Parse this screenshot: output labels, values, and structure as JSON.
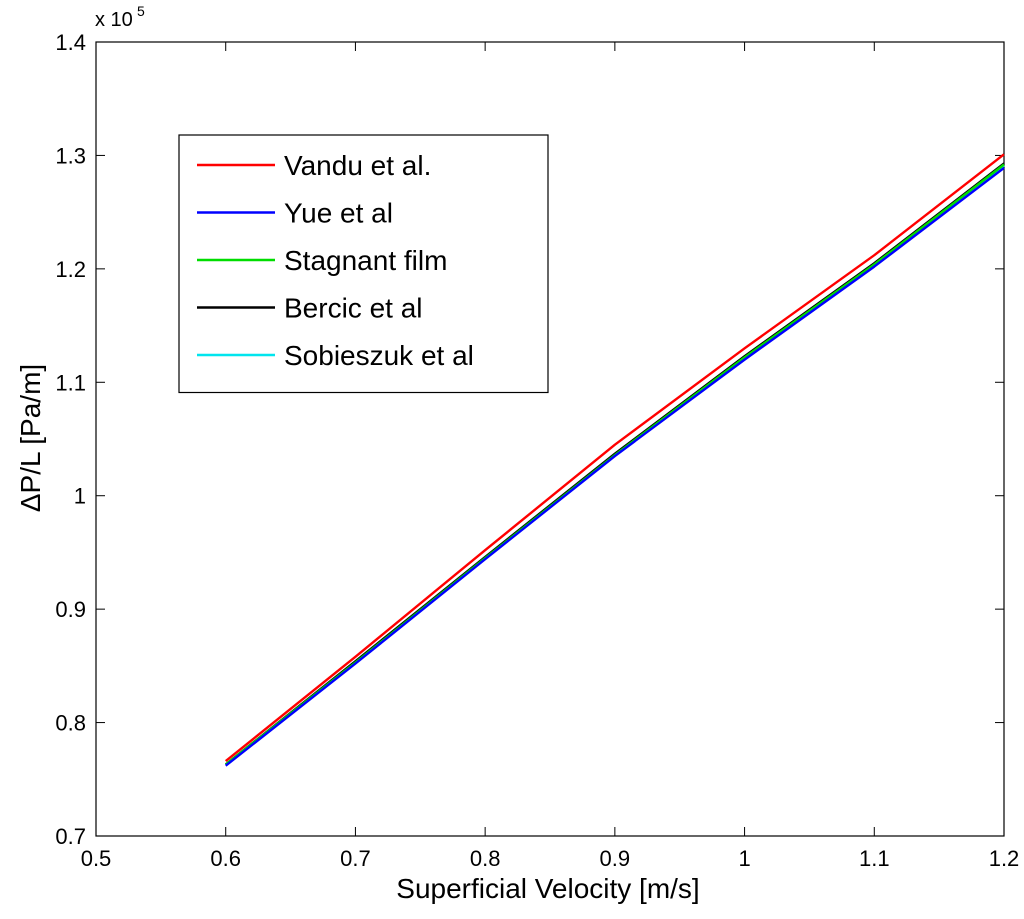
{
  "chart_data": {
    "type": "line",
    "title": "",
    "xlabel": "Superficial Velocity [m/s]",
    "ylabel": "ΔP/L [Pa/m]",
    "xlim": [
      0.5,
      1.2
    ],
    "ylim": [
      0.7,
      1.4
    ],
    "y_multiplier": "x 10",
    "y_multiplier_exponent": "5",
    "x_ticks": [
      "0.5",
      "0.6",
      "0.7",
      "0.8",
      "0.9",
      "1",
      "1.1",
      "1.2"
    ],
    "y_ticks": [
      "0.7",
      "0.8",
      "0.9",
      "1",
      "1.1",
      "1.2",
      "1.3",
      "1.4"
    ],
    "grid": false,
    "legend_position": "top-left",
    "series": [
      {
        "name": "Vandu et al.",
        "color": "#ff0000",
        "x": [
          0.6,
          0.7,
          0.8,
          0.9,
          1.0,
          1.1,
          1.2
        ],
        "y": [
          0.766,
          0.858,
          0.952,
          1.045,
          1.13,
          1.212,
          1.301
        ]
      },
      {
        "name": "Yue et al",
        "color": "#0000ff",
        "x": [
          0.6,
          0.7,
          0.8,
          0.9,
          1.0,
          1.1,
          1.2
        ],
        "y": [
          0.762,
          0.852,
          0.944,
          1.035,
          1.12,
          1.202,
          1.289
        ]
      },
      {
        "name": "Stagnant film",
        "color": "#00dd00",
        "x": [
          0.6,
          0.7,
          0.8,
          0.9,
          1.0,
          1.1,
          1.2
        ],
        "y": [
          0.763,
          0.853,
          0.945,
          1.036,
          1.122,
          1.204,
          1.292
        ]
      },
      {
        "name": "Bercic et al",
        "color": "#000000",
        "x": [
          0.6,
          0.7,
          0.8,
          0.9,
          1.0,
          1.1,
          1.2
        ],
        "y": [
          0.763,
          0.854,
          0.946,
          1.037,
          1.123,
          1.205,
          1.293
        ]
      },
      {
        "name": "Sobieszuk et al",
        "color": "#00e5ee",
        "x": [
          0.6,
          0.7,
          0.8,
          0.9,
          1.0,
          1.1,
          1.2
        ],
        "y": [
          0.763,
          0.853,
          0.945,
          1.036,
          1.122,
          1.204,
          1.291
        ]
      }
    ]
  }
}
